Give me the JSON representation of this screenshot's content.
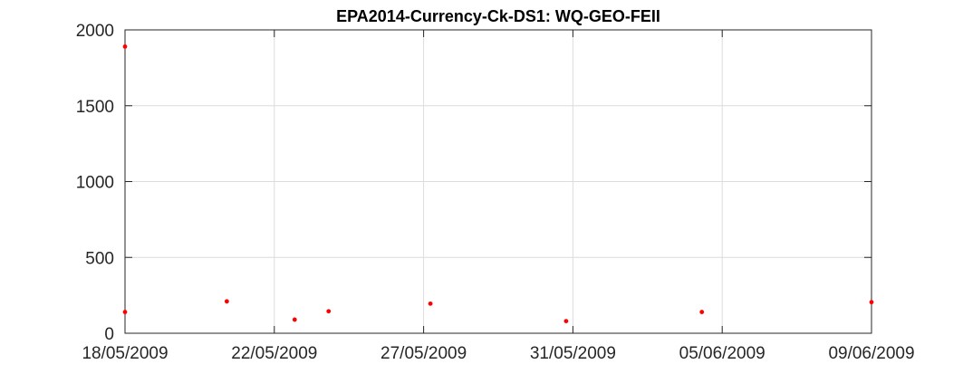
{
  "chart_data": {
    "type": "scatter",
    "title": "EPA2014-Currency-Ck-DS1: WQ-GEO-FEII",
    "xlabel": "",
    "ylabel": "",
    "x_tick_labels": [
      "18/05/2009",
      "22/05/2009",
      "27/05/2009",
      "31/05/2009",
      "05/06/2009",
      "09/06/2009"
    ],
    "y_ticks": [
      0,
      500,
      1000,
      1500,
      2000
    ],
    "ylim": [
      0,
      2000
    ],
    "xlim": [
      "18/05/2009",
      "09/06/2009"
    ],
    "grid": true,
    "marker_color": "#ff0000",
    "points": [
      {
        "x": "18/05/2009",
        "y": 1890
      },
      {
        "x": "18/05/2009",
        "y": 140
      },
      {
        "x": "21/05/2009",
        "y": 210
      },
      {
        "x": "23/05/2009",
        "y": 90
      },
      {
        "x": "24/05/2009",
        "y": 145
      },
      {
        "x": "27/05/2009",
        "y": 195
      },
      {
        "x": "31/05/2009",
        "y": 80
      },
      {
        "x": "04/06/2009",
        "y": 140
      },
      {
        "x": "09/06/2009",
        "y": 205
      }
    ]
  }
}
